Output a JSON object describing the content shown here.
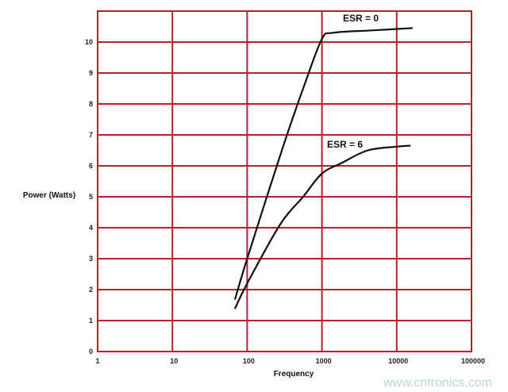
{
  "chart_data": {
    "type": "line",
    "title": "",
    "xlabel": "Frequency",
    "ylabel": "Power (Watts)",
    "xscale": "log",
    "xlim": [
      1,
      100000
    ],
    "ylim": [
      0,
      11
    ],
    "grid": true,
    "grid_color": "#b5202e",
    "x_ticks": [
      "1",
      "10",
      "100",
      "1000",
      "10000",
      "100000"
    ],
    "y_ticks": [
      "0",
      "1",
      "2",
      "3",
      "4",
      "5",
      "6",
      "7",
      "8",
      "9",
      "10"
    ],
    "series": [
      {
        "name": "ESR = 0",
        "color": "#111111",
        "x": [
          69,
          100,
          300,
          600,
          1000,
          1400,
          5000,
          16000
        ],
        "y": [
          1.7,
          3.0,
          6.6,
          8.7,
          10.1,
          10.3,
          10.38,
          10.45
        ]
      },
      {
        "name": "ESR = 6",
        "color": "#111111",
        "x": [
          69,
          100,
          275,
          560,
          1000,
          1860,
          4100,
          10000,
          15000
        ],
        "y": [
          1.4,
          2.2,
          4.1,
          5.0,
          5.75,
          6.1,
          6.5,
          6.62,
          6.65
        ]
      }
    ]
  },
  "watermark": "www.cntronics.com"
}
